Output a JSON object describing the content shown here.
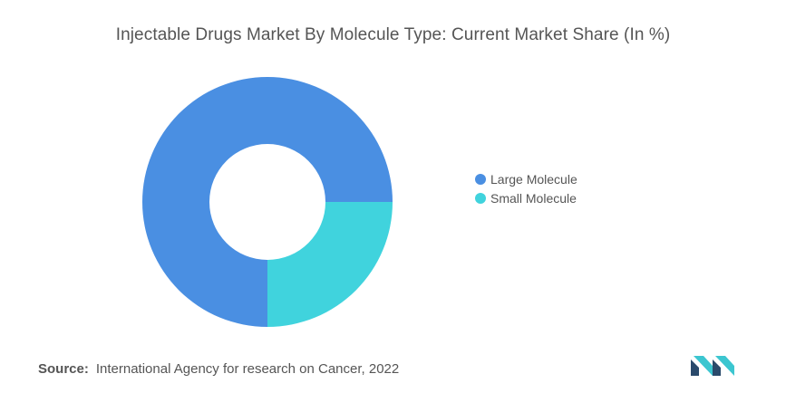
{
  "chart_data": {
    "type": "pie",
    "title": "Injectable Drugs Market By Molecule Type: Current Market Share (In %)",
    "categories": [
      "Large Molecule",
      "Small Molecule"
    ],
    "values": [
      75,
      25
    ],
    "colors": [
      "#4a8fe2",
      "#40d3dd"
    ],
    "legend": "right"
  },
  "source": {
    "label": "Source:",
    "text": "International Agency for research on Cancer, 2022"
  },
  "logo": {
    "icon": "mordor-intelligence-logo-icon",
    "colors": [
      "#2a4a6b",
      "#3cc6d0"
    ]
  }
}
